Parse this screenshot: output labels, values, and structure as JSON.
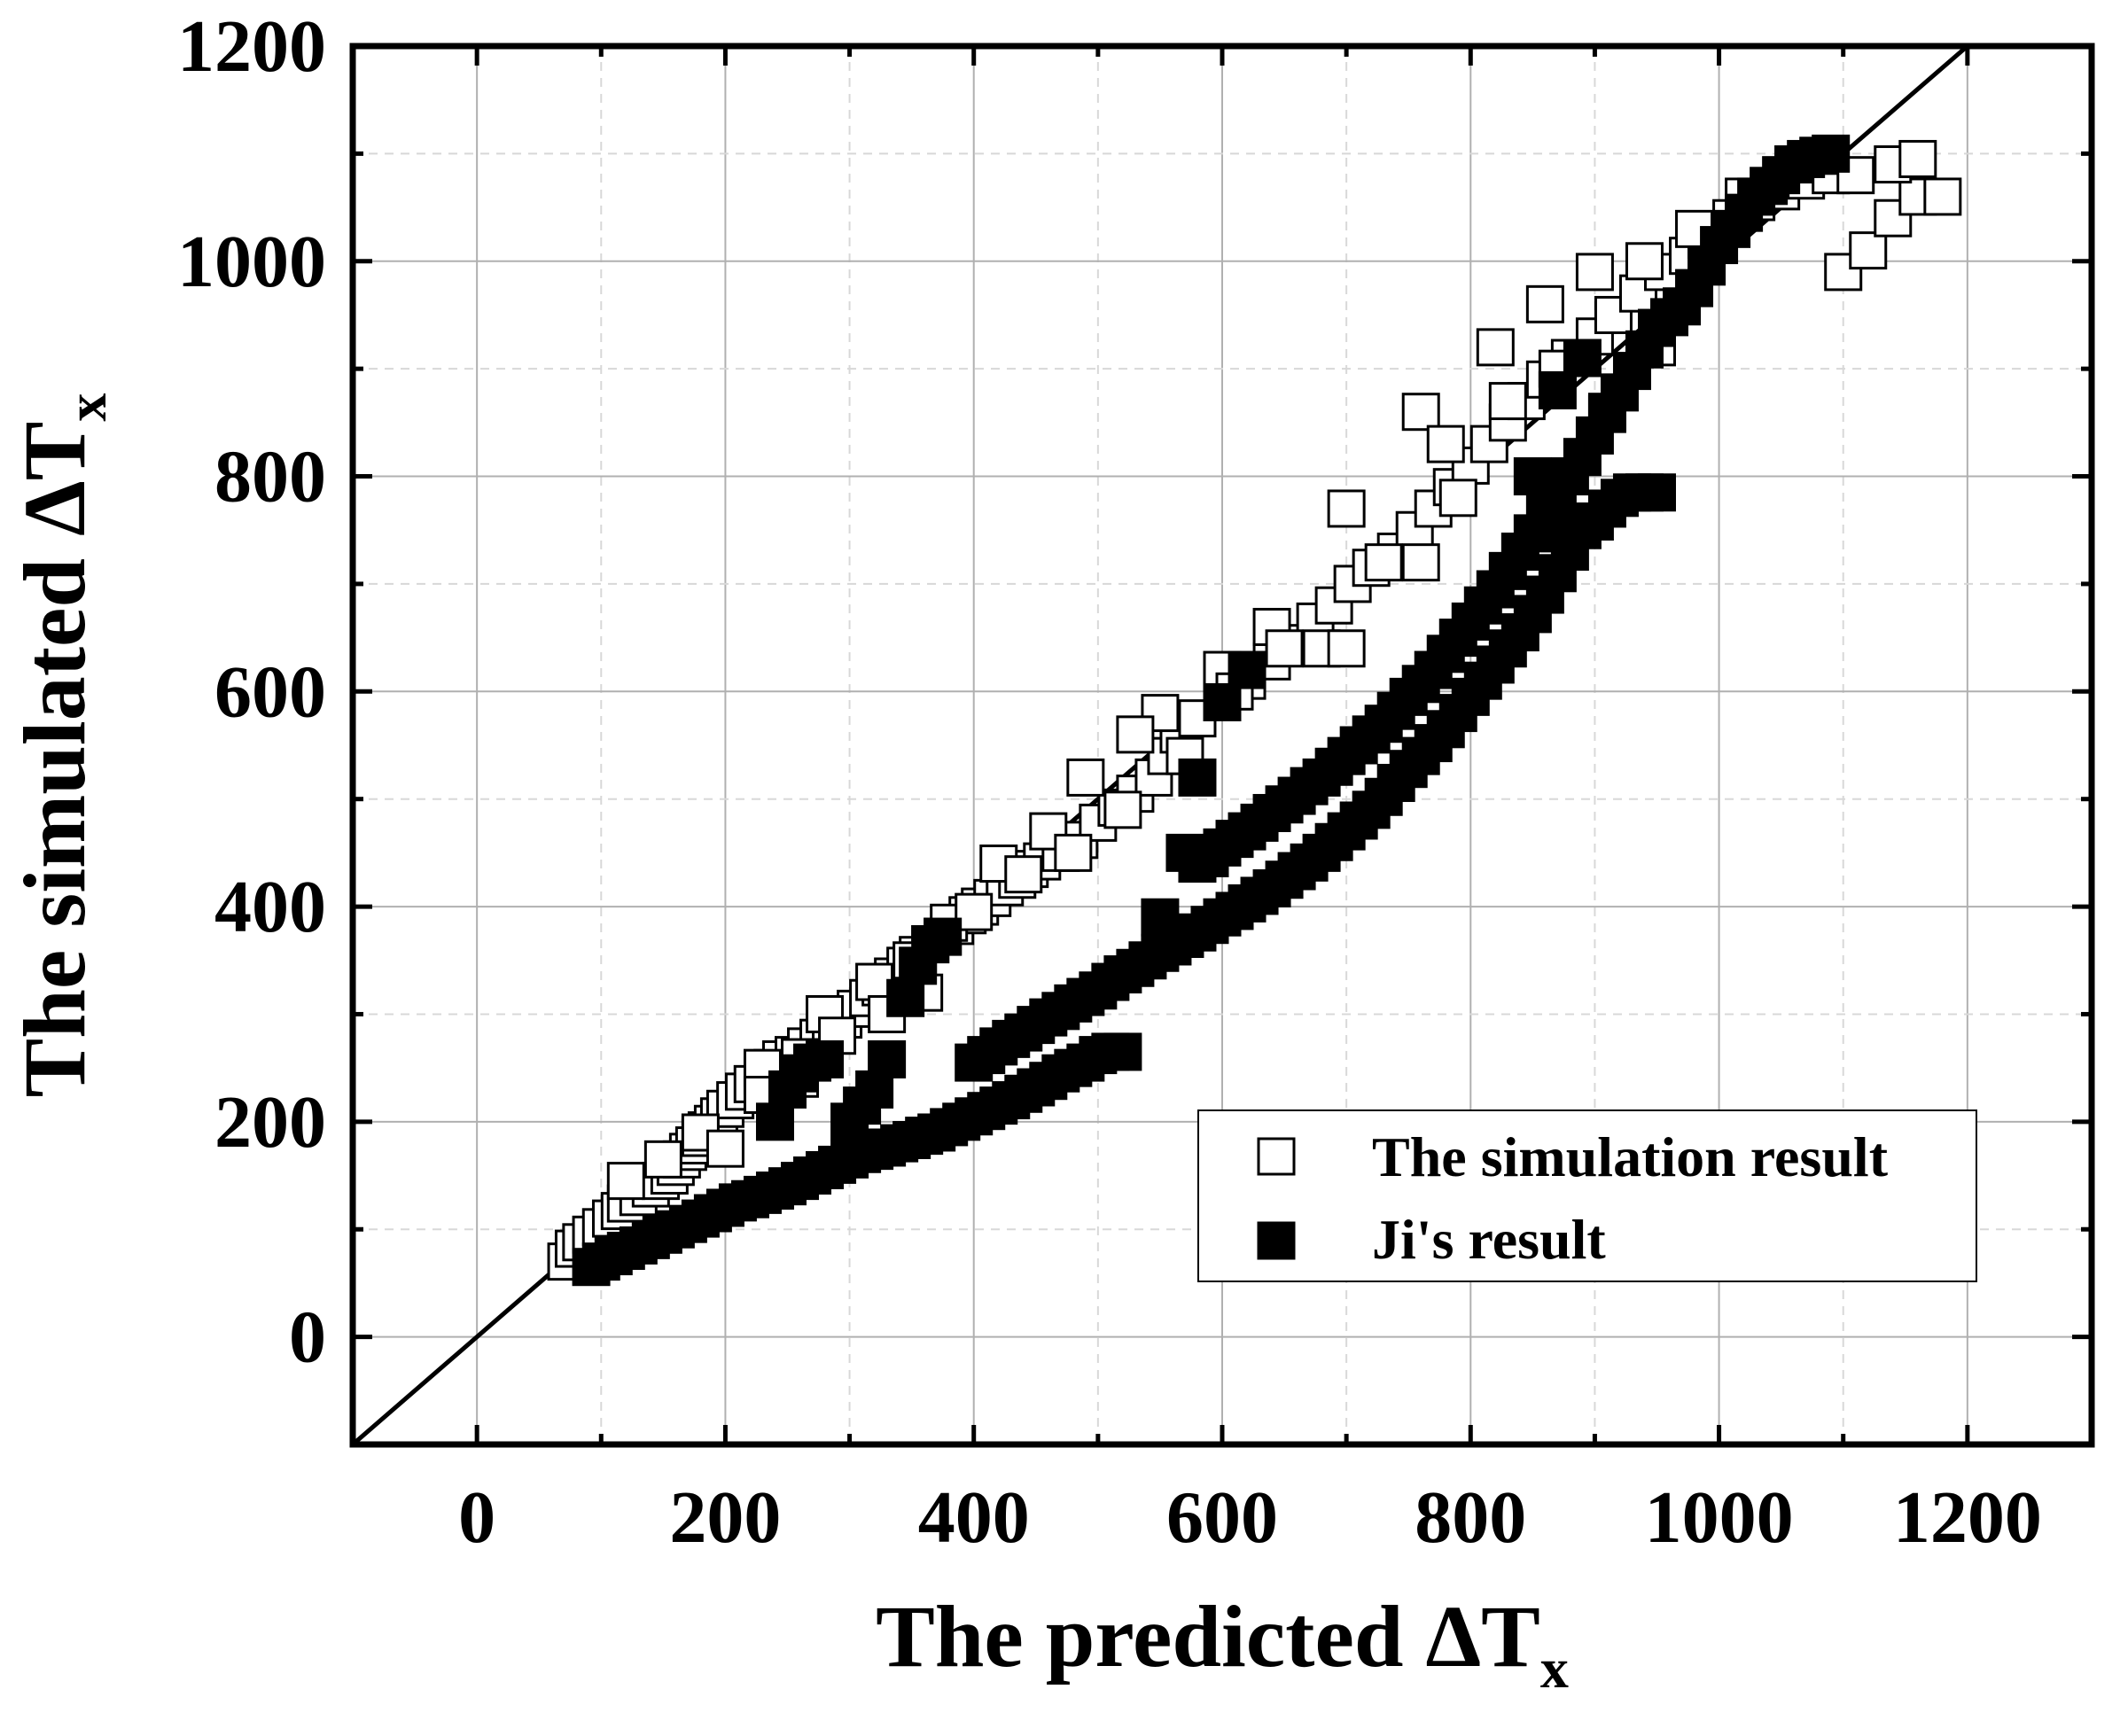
{
  "chart_data": {
    "type": "scatter",
    "xlabel": "The predicted ΔT",
    "xlabel_sub": "x",
    "ylabel": "The simulated ΔT",
    "ylabel_sub": "x",
    "xlim": [
      -100,
      1300
    ],
    "ylim": [
      -100,
      1200
    ],
    "xticks": [
      0,
      200,
      400,
      600,
      800,
      1000,
      1200
    ],
    "yticks": [
      0,
      200,
      400,
      600,
      800,
      1000,
      1200
    ],
    "grid": true,
    "legend_position": "lower-right",
    "reference_line": {
      "type": "y=x"
    },
    "series": [
      {
        "name": "The simulation result",
        "marker": "open-square",
        "color": "#000000",
        "points": [
          [
            72,
            70
          ],
          [
            78,
            82
          ],
          [
            84,
            88
          ],
          [
            92,
            95
          ],
          [
            100,
            102
          ],
          [
            108,
            110
          ],
          [
            115,
            117
          ],
          [
            120,
            124
          ],
          [
            130,
            130
          ],
          [
            140,
            138
          ],
          [
            148,
            145
          ],
          [
            155,
            150
          ],
          [
            160,
            158
          ],
          [
            165,
            165
          ],
          [
            170,
            172
          ],
          [
            175,
            178
          ],
          [
            180,
            185
          ],
          [
            185,
            192
          ],
          [
            190,
            198
          ],
          [
            195,
            205
          ],
          [
            200,
            212
          ],
          [
            208,
            220
          ],
          [
            215,
            228
          ],
          [
            222,
            235
          ],
          [
            230,
            243
          ],
          [
            238,
            250
          ],
          [
            245,
            258
          ],
          [
            255,
            262
          ],
          [
            265,
            270
          ],
          [
            275,
            278
          ],
          [
            285,
            285
          ],
          [
            295,
            295
          ],
          [
            305,
            305
          ],
          [
            315,
            315
          ],
          [
            325,
            325
          ],
          [
            335,
            335
          ],
          [
            345,
            345
          ],
          [
            355,
            355
          ],
          [
            365,
            365
          ],
          [
            375,
            372
          ],
          [
            385,
            382
          ],
          [
            395,
            392
          ],
          [
            405,
            400
          ],
          [
            415,
            408
          ],
          [
            425,
            418
          ],
          [
            435,
            425
          ],
          [
            445,
            435
          ],
          [
            455,
            442
          ],
          [
            470,
            450
          ],
          [
            485,
            462
          ],
          [
            500,
            478
          ],
          [
            515,
            492
          ],
          [
            530,
            505
          ],
          [
            545,
            520
          ],
          [
            555,
            540
          ],
          [
            565,
            560
          ],
          [
            580,
            575
          ],
          [
            600,
            595
          ],
          [
            620,
            610
          ],
          [
            640,
            628
          ],
          [
            660,
            645
          ],
          [
            675,
            665
          ],
          [
            690,
            680
          ],
          [
            705,
            700
          ],
          [
            720,
            715
          ],
          [
            740,
            730
          ],
          [
            755,
            750
          ],
          [
            770,
            770
          ],
          [
            785,
            790
          ],
          [
            800,
            810
          ],
          [
            815,
            830
          ],
          [
            830,
            850
          ],
          [
            845,
            870
          ],
          [
            860,
            890
          ],
          [
            880,
            910
          ],
          [
            900,
            930
          ],
          [
            915,
            950
          ],
          [
            935,
            970
          ],
          [
            955,
            990
          ],
          [
            975,
            1005
          ],
          [
            990,
            1020
          ],
          [
            1010,
            1040
          ],
          [
            1030,
            1055
          ],
          [
            1050,
            1065
          ],
          [
            1070,
            1075
          ],
          [
            1090,
            1080
          ],
          [
            1100,
            990
          ],
          [
            1120,
            1010
          ],
          [
            1140,
            1040
          ],
          [
            1160,
            1060
          ],
          [
            1180,
            1060
          ],
          [
            120,
            145
          ],
          [
            150,
            165
          ],
          [
            180,
            190
          ],
          [
            200,
            175
          ],
          [
            230,
            250
          ],
          [
            260,
            240
          ],
          [
            280,
            300
          ],
          [
            320,
            330
          ],
          [
            350,
            350
          ],
          [
            380,
            385
          ],
          [
            420,
            440
          ],
          [
            460,
            470
          ],
          [
            490,
            520
          ],
          [
            520,
            490
          ],
          [
            550,
            580
          ],
          [
            600,
            620
          ],
          [
            640,
            660
          ],
          [
            700,
            770
          ],
          [
            680,
            640
          ],
          [
            760,
            860
          ],
          [
            780,
            830
          ],
          [
            820,
            920
          ],
          [
            860,
            960
          ],
          [
            900,
            990
          ],
          [
            940,
            1000
          ],
          [
            980,
            1030
          ],
          [
            1020,
            1060
          ],
          [
            1060,
            1090
          ],
          [
            1110,
            1080
          ],
          [
            1140,
            1090
          ],
          [
            1160,
            1095
          ],
          [
            230,
            225
          ],
          [
            260,
            260
          ],
          [
            290,
            280
          ],
          [
            330,
            300
          ],
          [
            360,
            320
          ],
          [
            400,
            395
          ],
          [
            440,
            430
          ],
          [
            480,
            450
          ],
          [
            530,
            560
          ],
          [
            570,
            540
          ],
          [
            610,
            600
          ],
          [
            650,
            640
          ],
          [
            700,
            640
          ],
          [
            730,
            720
          ],
          [
            760,
            720
          ],
          [
            790,
            780
          ],
          [
            830,
            870
          ],
          [
            870,
            900
          ],
          [
            910,
            860
          ],
          [
            950,
            920
          ]
        ]
      },
      {
        "name": "Ji's result",
        "marker": "filled-square",
        "color": "#000000",
        "points": [
          [
            92,
            65
          ],
          [
            100,
            70
          ],
          [
            110,
            75
          ],
          [
            120,
            80
          ],
          [
            130,
            85
          ],
          [
            140,
            90
          ],
          [
            150,
            95
          ],
          [
            160,
            100
          ],
          [
            170,
            105
          ],
          [
            180,
            110
          ],
          [
            190,
            115
          ],
          [
            200,
            120
          ],
          [
            210,
            125
          ],
          [
            220,
            128
          ],
          [
            230,
            132
          ],
          [
            240,
            136
          ],
          [
            250,
            140
          ],
          [
            260,
            145
          ],
          [
            270,
            150
          ],
          [
            280,
            155
          ],
          [
            290,
            160
          ],
          [
            300,
            165
          ],
          [
            310,
            170
          ],
          [
            320,
            173
          ],
          [
            330,
            176
          ],
          [
            340,
            180
          ],
          [
            350,
            183
          ],
          [
            360,
            187
          ],
          [
            370,
            190
          ],
          [
            380,
            195
          ],
          [
            390,
            200
          ],
          [
            400,
            205
          ],
          [
            410,
            210
          ],
          [
            420,
            215
          ],
          [
            430,
            220
          ],
          [
            440,
            226
          ],
          [
            450,
            232
          ],
          [
            460,
            238
          ],
          [
            470,
            245
          ],
          [
            480,
            250
          ],
          [
            490,
            255
          ],
          [
            500,
            262
          ],
          [
            510,
            265
          ],
          [
            520,
            265
          ],
          [
            400,
            255
          ],
          [
            410,
            262
          ],
          [
            420,
            270
          ],
          [
            430,
            277
          ],
          [
            440,
            283
          ],
          [
            450,
            290
          ],
          [
            460,
            297
          ],
          [
            470,
            303
          ],
          [
            480,
            310
          ],
          [
            490,
            316
          ],
          [
            500,
            322
          ],
          [
            510,
            330
          ],
          [
            520,
            337
          ],
          [
            530,
            343
          ],
          [
            540,
            350
          ],
          [
            550,
            357
          ],
          [
            560,
            363
          ],
          [
            570,
            370
          ],
          [
            580,
            376
          ],
          [
            590,
            383
          ],
          [
            600,
            390
          ],
          [
            610,
            396
          ],
          [
            620,
            403
          ],
          [
            630,
            410
          ],
          [
            640,
            417
          ],
          [
            650,
            425
          ],
          [
            660,
            433
          ],
          [
            670,
            441
          ],
          [
            680,
            450
          ],
          [
            690,
            460
          ],
          [
            700,
            470
          ],
          [
            710,
            480
          ],
          [
            720,
            490
          ],
          [
            730,
            502
          ],
          [
            740,
            515
          ],
          [
            750,
            528
          ],
          [
            760,
            540
          ],
          [
            770,
            552
          ],
          [
            780,
            565
          ],
          [
            790,
            580
          ],
          [
            800,
            595
          ],
          [
            810,
            610
          ],
          [
            820,
            625
          ],
          [
            830,
            640
          ],
          [
            840,
            655
          ],
          [
            850,
            672
          ],
          [
            860,
            690
          ],
          [
            870,
            710
          ],
          [
            880,
            730
          ],
          [
            890,
            750
          ],
          [
            900,
            758
          ],
          [
            910,
            770
          ],
          [
            920,
            780
          ],
          [
            930,
            785
          ],
          [
            940,
            785
          ],
          [
            950,
            785
          ],
          [
            570,
            450
          ],
          [
            580,
            440
          ],
          [
            590,
            445
          ],
          [
            600,
            455
          ],
          [
            610,
            463
          ],
          [
            620,
            470
          ],
          [
            630,
            478
          ],
          [
            640,
            487
          ],
          [
            650,
            495
          ],
          [
            660,
            503
          ],
          [
            670,
            512
          ],
          [
            680,
            520
          ],
          [
            690,
            530
          ],
          [
            700,
            540
          ],
          [
            710,
            550
          ],
          [
            720,
            560
          ],
          [
            730,
            570
          ],
          [
            740,
            582
          ],
          [
            750,
            595
          ],
          [
            760,
            607
          ],
          [
            770,
            620
          ],
          [
            780,
            635
          ],
          [
            790,
            650
          ],
          [
            800,
            665
          ],
          [
            810,
            680
          ],
          [
            820,
            695
          ],
          [
            830,
            712
          ],
          [
            840,
            730
          ],
          [
            850,
            747
          ],
          [
            860,
            765
          ],
          [
            870,
            782
          ],
          [
            880,
            800
          ],
          [
            890,
            818
          ],
          [
            900,
            838
          ],
          [
            910,
            858
          ],
          [
            920,
            878
          ],
          [
            930,
            898
          ],
          [
            940,
            918
          ],
          [
            950,
            938
          ],
          [
            960,
            948
          ],
          [
            970,
            958
          ],
          [
            980,
            975
          ],
          [
            990,
            995
          ],
          [
            1000,
            1015
          ],
          [
            1010,
            1030
          ],
          [
            1020,
            1045
          ],
          [
            1030,
            1060
          ],
          [
            1040,
            1070
          ],
          [
            1050,
            1080
          ],
          [
            1060,
            1090
          ],
          [
            1070,
            1095
          ],
          [
            1080,
            1098
          ],
          [
            1090,
            1100
          ],
          [
            240,
            200
          ],
          [
            250,
            230
          ],
          [
            260,
            245
          ],
          [
            270,
            255
          ],
          [
            280,
            258
          ],
          [
            300,
            200
          ],
          [
            310,
            215
          ],
          [
            320,
            230
          ],
          [
            330,
            258
          ],
          [
            345,
            315
          ],
          [
            355,
            345
          ],
          [
            365,
            365
          ],
          [
            375,
            372
          ],
          [
            550,
            390
          ],
          [
            580,
            520
          ],
          [
            600,
            590
          ],
          [
            620,
            620
          ],
          [
            850,
            800
          ],
          [
            870,
            880
          ],
          [
            890,
            910
          ]
        ]
      }
    ]
  }
}
